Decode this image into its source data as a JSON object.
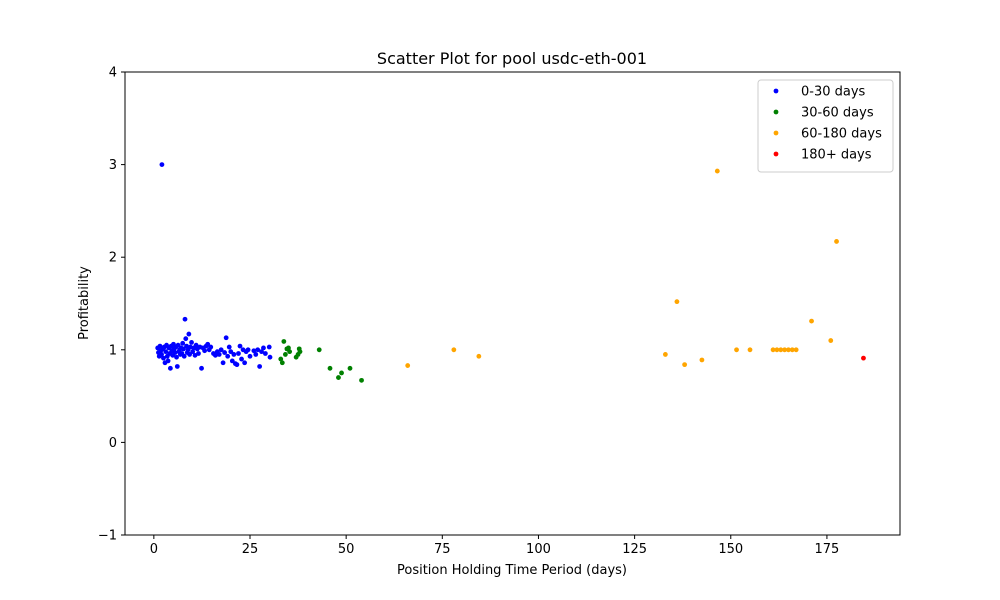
{
  "chart_data": {
    "type": "scatter",
    "title": "Scatter Plot for pool usdc-eth-001",
    "xlabel": "Position Holding Time Period (days)",
    "ylabel": "Profitability",
    "xlim": [
      -7.5,
      194
    ],
    "ylim": [
      -1,
      4
    ],
    "xticks": [
      0,
      25,
      50,
      75,
      100,
      125,
      150,
      175
    ],
    "yticks": [
      -1,
      0,
      1,
      2,
      3,
      4
    ],
    "grid": false,
    "legend_position": "top-right",
    "series": [
      {
        "name": "0-30 days",
        "color": "#0000ff",
        "points": [
          [
            2.1,
            3.0
          ],
          [
            1.0,
            1.02
          ],
          [
            1.2,
            0.97
          ],
          [
            1.4,
            0.93
          ],
          [
            1.6,
            1.04
          ],
          [
            1.8,
            0.99
          ],
          [
            2.0,
            0.95
          ],
          [
            2.3,
            1.01
          ],
          [
            2.5,
            0.91
          ],
          [
            2.7,
            1.03
          ],
          [
            2.9,
            0.86
          ],
          [
            3.1,
            0.98
          ],
          [
            3.3,
            1.05
          ],
          [
            3.5,
            0.93
          ],
          [
            3.7,
            0.88
          ],
          [
            3.9,
            1.02
          ],
          [
            4.1,
            0.96
          ],
          [
            4.3,
            0.8
          ],
          [
            4.5,
            1.04
          ],
          [
            4.7,
            0.99
          ],
          [
            4.9,
            0.94
          ],
          [
            5.1,
            1.06
          ],
          [
            5.3,
            1.01
          ],
          [
            5.5,
            0.97
          ],
          [
            5.7,
            1.03
          ],
          [
            5.9,
            0.92
          ],
          [
            6.1,
            0.82
          ],
          [
            6.3,
            1.05
          ],
          [
            6.5,
            0.98
          ],
          [
            6.7,
            1.0
          ],
          [
            6.9,
            0.95
          ],
          [
            7.1,
            1.02
          ],
          [
            7.3,
            0.96
          ],
          [
            7.5,
            1.07
          ],
          [
            7.7,
            1.01
          ],
          [
            7.9,
            0.93
          ],
          [
            8.1,
            1.33
          ],
          [
            8.3,
            1.12
          ],
          [
            8.5,
            1.04
          ],
          [
            8.7,
            0.97
          ],
          [
            8.9,
            1.0
          ],
          [
            9.1,
            1.17
          ],
          [
            9.3,
            0.95
          ],
          [
            9.5,
            1.03
          ],
          [
            9.8,
            1.08
          ],
          [
            10.1,
            0.98
          ],
          [
            10.4,
            1.02
          ],
          [
            10.7,
            0.94
          ],
          [
            11.0,
            1.05
          ],
          [
            11.3,
            1.01
          ],
          [
            11.6,
            0.96
          ],
          [
            12.0,
            1.03
          ],
          [
            12.4,
            0.8
          ],
          [
            12.8,
            1.02
          ],
          [
            13.2,
            0.99
          ],
          [
            13.6,
            1.04
          ],
          [
            14.0,
            1.06
          ],
          [
            14.4,
            1.0
          ],
          [
            14.8,
            1.03
          ],
          [
            15.5,
            0.96
          ],
          [
            16.0,
            0.94
          ],
          [
            16.5,
            0.98
          ],
          [
            17.0,
            0.95
          ],
          [
            17.5,
            1.0
          ],
          [
            18.0,
            0.86
          ],
          [
            18.4,
            0.97
          ],
          [
            18.8,
            1.13
          ],
          [
            19.2,
            0.93
          ],
          [
            19.6,
            1.03
          ],
          [
            20.0,
            0.98
          ],
          [
            20.4,
            0.88
          ],
          [
            20.8,
            0.95
          ],
          [
            21.2,
            0.85
          ],
          [
            21.6,
            0.84
          ],
          [
            22.0,
            0.96
          ],
          [
            22.4,
            1.04
          ],
          [
            22.8,
            0.9
          ],
          [
            23.2,
            1.0
          ],
          [
            23.6,
            0.86
          ],
          [
            24.0,
            0.98
          ],
          [
            24.5,
            1.0
          ],
          [
            25.0,
            0.93
          ],
          [
            26.0,
            0.99
          ],
          [
            26.5,
            0.95
          ],
          [
            27.0,
            1.0
          ],
          [
            27.5,
            0.82
          ],
          [
            28.0,
            0.98
          ],
          [
            28.5,
            1.02
          ],
          [
            29.0,
            0.96
          ],
          [
            30.0,
            1.03
          ],
          [
            30.2,
            0.92
          ]
        ]
      },
      {
        "name": "30-60 days",
        "color": "#008000",
        "points": [
          [
            33.0,
            0.9
          ],
          [
            33.4,
            0.86
          ],
          [
            33.8,
            1.09
          ],
          [
            34.2,
            0.95
          ],
          [
            34.6,
            1.01
          ],
          [
            35.0,
            1.02
          ],
          [
            35.3,
            0.98
          ],
          [
            37.0,
            0.92
          ],
          [
            37.5,
            0.95
          ],
          [
            37.8,
            1.01
          ],
          [
            38.0,
            0.98
          ],
          [
            43.0,
            1.0
          ],
          [
            45.8,
            0.8
          ],
          [
            48.0,
            0.7
          ],
          [
            48.8,
            0.75
          ],
          [
            51.0,
            0.8
          ],
          [
            54.0,
            0.67
          ]
        ]
      },
      {
        "name": "60-180 days",
        "color": "#ffa500",
        "points": [
          [
            66.0,
            0.83
          ],
          [
            78.0,
            1.0
          ],
          [
            84.5,
            0.93
          ],
          [
            133.0,
            0.95
          ],
          [
            136.0,
            1.52
          ],
          [
            138.0,
            0.84
          ],
          [
            142.5,
            0.89
          ],
          [
            146.5,
            2.93
          ],
          [
            151.5,
            1.0
          ],
          [
            155.0,
            1.0
          ],
          [
            161.0,
            1.0
          ],
          [
            162.0,
            1.0
          ],
          [
            163.0,
            1.0
          ],
          [
            164.0,
            1.0
          ],
          [
            165.0,
            1.0
          ],
          [
            166.0,
            1.0
          ],
          [
            167.0,
            1.0
          ],
          [
            171.0,
            1.31
          ],
          [
            176.0,
            1.1
          ],
          [
            177.5,
            2.17
          ]
        ]
      },
      {
        "name": "180+ days",
        "color": "#ff0000",
        "points": [
          [
            184.5,
            0.91
          ]
        ]
      }
    ]
  }
}
